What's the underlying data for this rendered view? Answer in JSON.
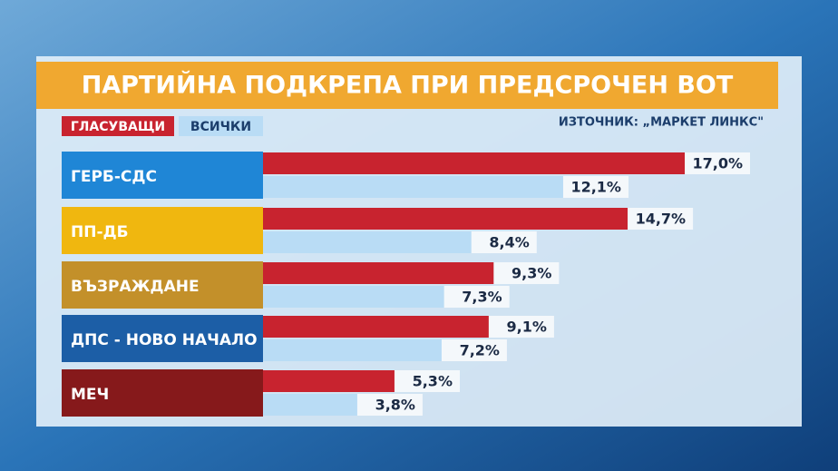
{
  "chart_data": {
    "type": "bar",
    "orientation": "horizontal",
    "title": "ПАРТИЙНА ПОДКРЕПА ПРИ ПРЕДСРОЧЕН ВОТ",
    "source": "ИЗТОЧНИК: „МАРКЕТ ЛИНКС\"",
    "categories": [
      "ГЕРБ-СДС",
      "ПП-ДБ",
      "ВЪЗРАЖДАНЕ",
      "ДПС - НОВО НАЧАЛО",
      "МЕЧ"
    ],
    "category_colors": [
      "#1f86d6",
      "#f0b70f",
      "#c3902a",
      "#1c5ea6",
      "#86191b"
    ],
    "series": [
      {
        "name": "ГЛАСУВАЩИ",
        "color": "#c8232f",
        "values": [
          17.0,
          14.7,
          9.3,
          9.1,
          5.3
        ],
        "value_labels": [
          "17,0%",
          "14,7%",
          "9,3%",
          "9,1%",
          "5,3%"
        ]
      },
      {
        "name": "ВСИЧКИ",
        "color": "#b9dcf5",
        "values": [
          12.1,
          8.4,
          7.3,
          7.2,
          3.8
        ],
        "value_labels": [
          "12,1%",
          "8,4%",
          "7,3%",
          "7,2%",
          "3,8%"
        ]
      }
    ]
  }
}
